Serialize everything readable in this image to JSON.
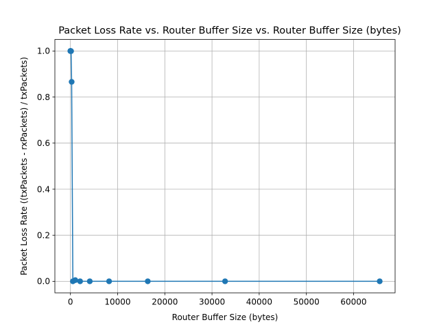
{
  "chart_data": {
    "type": "line",
    "title": "Packet Loss Rate vs. Router Buffer Size vs. Router Buffer Size (bytes)",
    "xlabel": "Router Buffer Size (bytes)",
    "ylabel": "Packet Loss Rate ((txPackets - rxPackets) / txPackets)",
    "xlim": [
      -3300,
      68800
    ],
    "ylim": [
      -0.05,
      1.05
    ],
    "xticks": [
      0,
      10000,
      20000,
      30000,
      40000,
      50000,
      60000
    ],
    "xtick_labels": [
      "0",
      "10000",
      "20000",
      "30000",
      "40000",
      "50000",
      "60000"
    ],
    "yticks": [
      0.0,
      0.2,
      0.4,
      0.6,
      0.8,
      1.0
    ],
    "ytick_labels": [
      "0.0",
      "0.2",
      "0.4",
      "0.6",
      "0.8",
      "1.0"
    ],
    "grid": true,
    "legend": "none",
    "series": [
      {
        "color": "#1f77b4",
        "marker": "circle",
        "x": [
          1,
          2,
          4,
          8,
          16,
          32,
          64,
          128,
          256,
          512,
          1024,
          2048,
          4096,
          8192,
          16384,
          32768,
          65536
        ],
        "y": [
          1.0,
          1.0,
          1.0,
          1.0,
          1.0,
          1.0,
          1.0,
          0.9994,
          0.866,
          0.0,
          0.005,
          0.0,
          0.0,
          0.0,
          0.0,
          0.0,
          0.0
        ]
      }
    ]
  }
}
